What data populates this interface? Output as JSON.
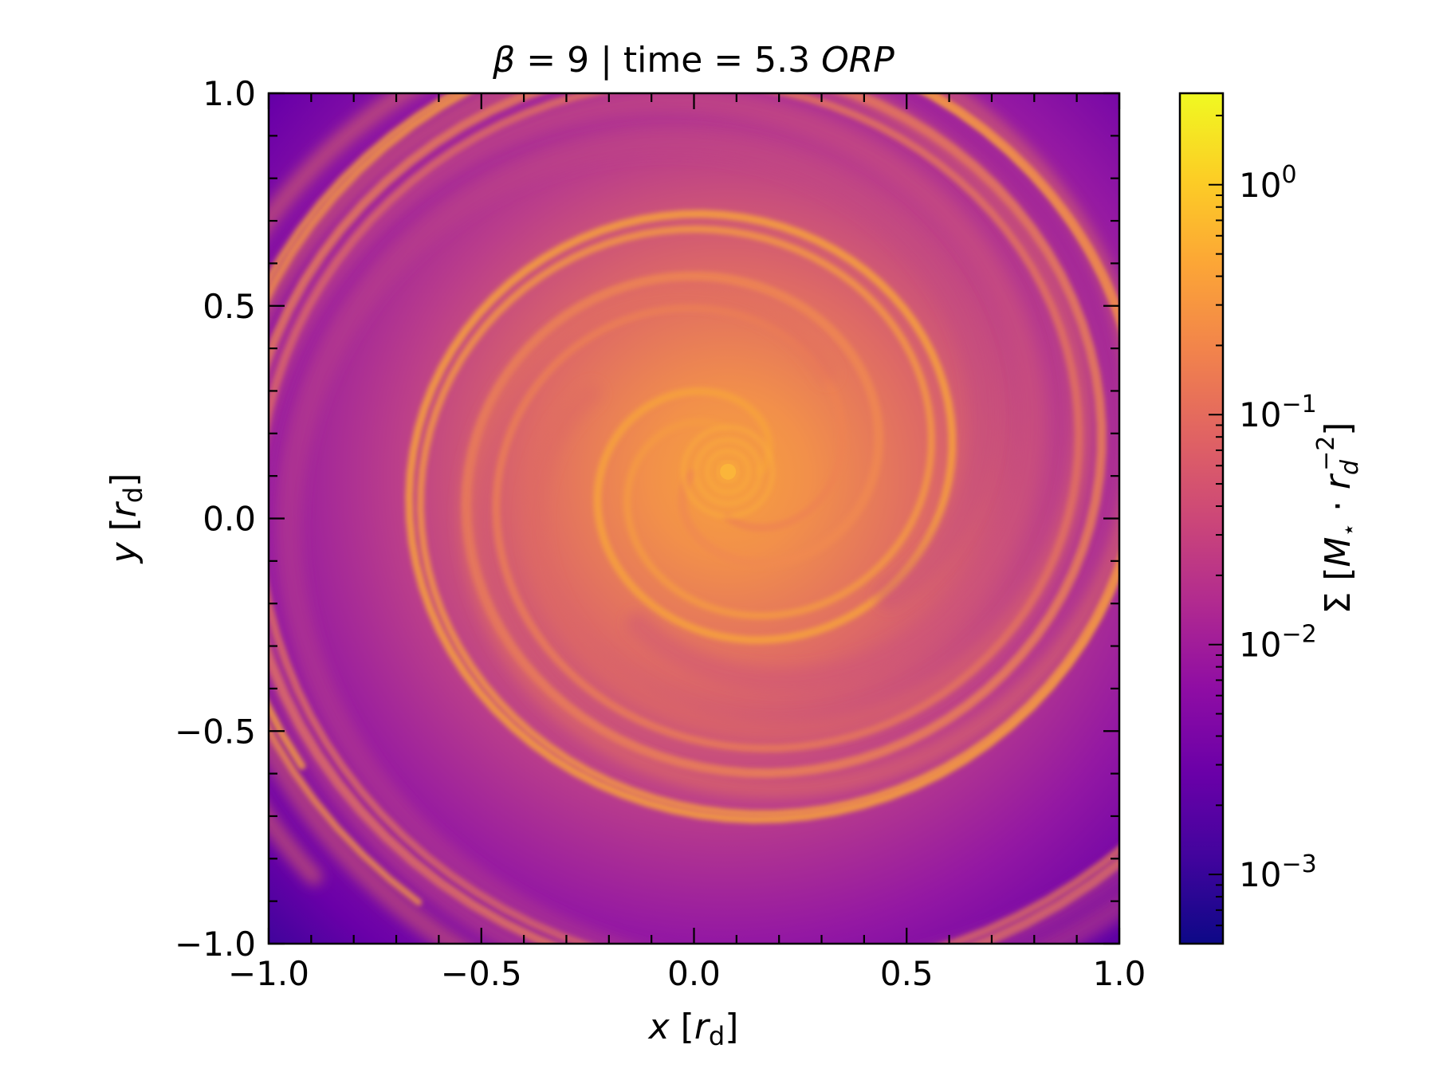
{
  "chart_data": {
    "type": "heatmap",
    "title": "β = 9 | time = 5.3 ORP",
    "title_parts": {
      "beta_symbol": "β",
      "beta_text": " = 9 | time = 5.3 ",
      "unit": "ORP"
    },
    "xlabel": "x [r_d]",
    "ylabel": "y [r_d]",
    "xlabel_parts": {
      "var": "x",
      "open": " [",
      "sym": "r",
      "sub": "d",
      "close": "]"
    },
    "ylabel_parts": {
      "var": "y",
      "open": " [",
      "sym": "r",
      "sub": "d",
      "close": "]"
    },
    "xlim": [
      -1.0,
      1.0
    ],
    "ylim": [
      -1.0,
      1.0
    ],
    "xticks": [
      -1.0,
      -0.5,
      0.0,
      0.5,
      1.0
    ],
    "yticks": [
      -1.0,
      -0.5,
      0.0,
      0.5,
      1.0
    ],
    "xtick_labels": [
      "−1.0",
      "−0.5",
      "0.0",
      "0.5",
      "1.0"
    ],
    "ytick_labels": [
      "−1.0",
      "−0.5",
      "0.0",
      "0.5",
      "1.0"
    ],
    "minor_tick_step": 0.1,
    "colormap": "plasma",
    "colorbar": {
      "scale": "log",
      "range": [
        0.0005,
        2.5
      ],
      "ticks": [
        0.001,
        0.01,
        0.1,
        1
      ],
      "tick_labels": [
        {
          "base": "10",
          "exp": "−3"
        },
        {
          "base": "10",
          "exp": "−2"
        },
        {
          "base": "10",
          "exp": "−1"
        },
        {
          "base": "10",
          "exp": "0"
        }
      ],
      "label_parts": {
        "sigma": "Σ",
        "open": " [",
        "m": "M",
        "star": "⋆",
        "dot": " · ",
        "r": "r",
        "sub": "d",
        "sup": "−2",
        "close": "]"
      }
    },
    "field": {
      "description_values": "surface density",
      "center": [
        0.08,
        0.11
      ],
      "background_edge_value": 0.001,
      "peak_value": 0.3
    },
    "colors": {
      "plasma_low": "#0d0887",
      "plasma_mid_purple": "#7e03a8",
      "plasma_magenta": "#cc4778",
      "plasma_orange": "#f89540",
      "plasma_high": "#f0f921"
    }
  }
}
